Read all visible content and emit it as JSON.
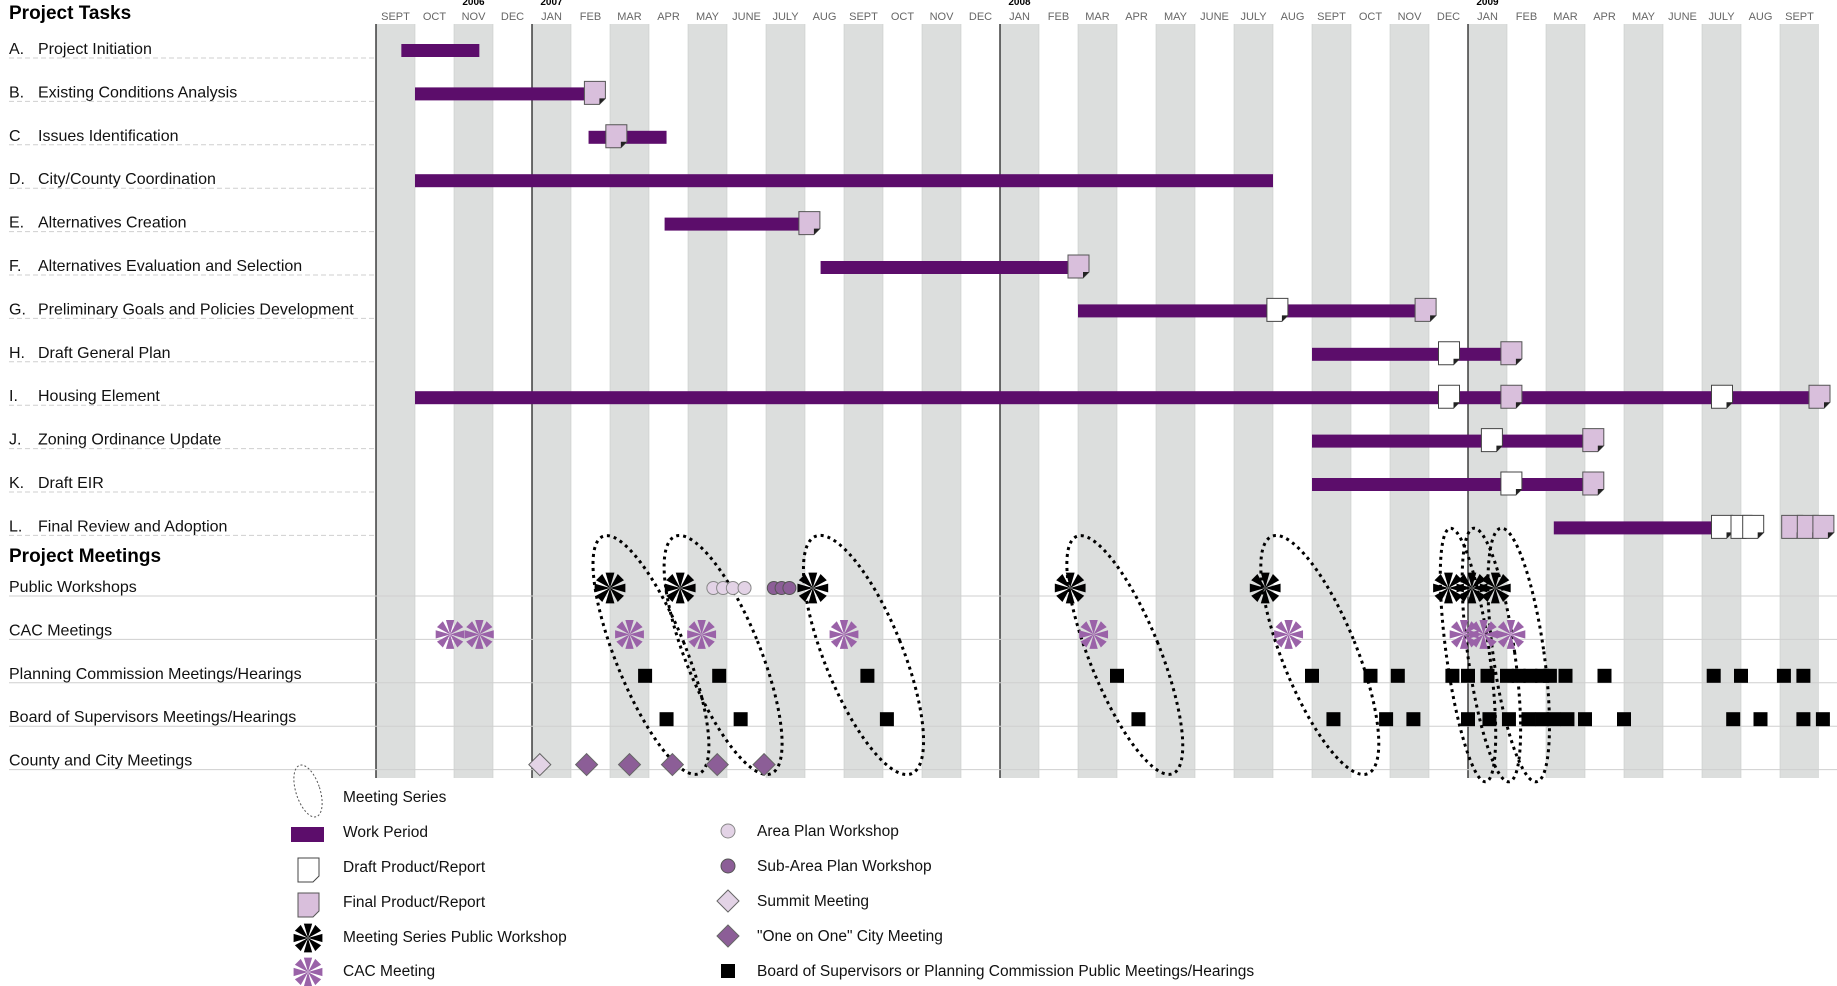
{
  "chart_data": {
    "type": "gantt",
    "headings": {
      "tasks": "Project Tasks",
      "meetings": "Project Meetings"
    },
    "month_labels": [
      "SEPT",
      "OCT",
      "NOV",
      "DEC",
      "JAN",
      "FEB",
      "MAR",
      "APR",
      "MAY",
      "JUNE",
      "JULY",
      "AUG",
      "SEPT",
      "OCT",
      "NOV",
      "DEC",
      "JAN",
      "FEB",
      "MAR",
      "APR",
      "MAY",
      "JUNE",
      "JULY",
      "AUG",
      "SEPT",
      "OCT",
      "NOV",
      "DEC",
      "JAN",
      "FEB",
      "MAR",
      "APR",
      "MAY",
      "JUNE",
      "JULY",
      "AUG",
      "SEPT"
    ],
    "year_labels": [
      {
        "label": "2006",
        "month": 2
      },
      {
        "label": "2007",
        "month": 4
      },
      {
        "label": "2008",
        "month": 16
      },
      {
        "label": "2009",
        "month": 28
      }
    ],
    "tasks": [
      {
        "id": "A.",
        "name": "Project Initiation",
        "start": 0.65,
        "end": 2.65,
        "drafts": [],
        "finals": []
      },
      {
        "id": "B.",
        "name": "Existing Conditions Analysis",
        "start": 1.0,
        "end": 5.6,
        "drafts": [],
        "finals": [
          5.6
        ]
      },
      {
        "id": "C",
        "name": "Issues Identification",
        "start": 5.45,
        "end": 7.45,
        "drafts": [],
        "finals": [
          6.15
        ]
      },
      {
        "id": "D.",
        "name": "City/County Coordination",
        "start": 1.0,
        "end": 23.0,
        "drafts": [],
        "finals": []
      },
      {
        "id": "E.",
        "name": "Alternatives Creation",
        "start": 7.4,
        "end": 11.1,
        "drafts": [],
        "finals": [
          11.1
        ]
      },
      {
        "id": "F.",
        "name": "Alternatives Evaluation and Selection",
        "start": 11.4,
        "end": 18.0,
        "drafts": [],
        "finals": [
          18.0
        ]
      },
      {
        "id": "G.",
        "name": "Preliminary Goals and Policies Development",
        "start": 18.0,
        "end": 26.9,
        "drafts": [
          23.1
        ],
        "finals": [
          26.9
        ]
      },
      {
        "id": "H.",
        "name": "Draft General Plan",
        "start": 24.0,
        "end": 29.0,
        "drafts": [
          27.5
        ],
        "finals": [
          29.1
        ]
      },
      {
        "id": "I.",
        "name": "Housing Element",
        "start": 1.0,
        "end": 37.0,
        "drafts": [
          27.5,
          34.5
        ],
        "finals": [
          29.1,
          37.0
        ]
      },
      {
        "id": "J.",
        "name": "Zoning Ordinance Update",
        "start": 24.0,
        "end": 31.2,
        "drafts": [
          28.6
        ],
        "finals": [
          31.2
        ]
      },
      {
        "id": "K.",
        "name": "Draft EIR",
        "start": 24.0,
        "end": 31.2,
        "drafts": [
          29.1
        ],
        "finals": [
          31.2
        ]
      },
      {
        "id": "L.",
        "name": "Final Review and Adoption",
        "start": 30.2,
        "end": 34.5,
        "drafts": [
          34.5,
          35.0,
          35.3
        ],
        "finals": [
          36.3,
          36.7,
          37.1
        ]
      }
    ],
    "meeting_rows": [
      {
        "name": "Public Workshops",
        "series_workshops": [
          6.0,
          7.8,
          11.2,
          17.8,
          22.8,
          27.5,
          28.1,
          28.7
        ],
        "area_plan_workshops": [
          8.65,
          8.9,
          9.15,
          9.45
        ],
        "sub_area_plan_workshops": [
          10.2,
          10.4,
          10.6
        ]
      },
      {
        "name": "CAC Meetings",
        "cac_meetings": [
          1.9,
          2.65,
          6.5,
          8.35,
          12.0,
          18.4,
          23.4,
          27.9,
          28.4,
          29.1
        ]
      },
      {
        "name": "Planning Commission Meetings/Hearings",
        "hearings": [
          6.9,
          8.8,
          12.6,
          19.0,
          24.0,
          25.5,
          26.2,
          27.6,
          28.0,
          28.5,
          29.0,
          29.3,
          29.6,
          29.9,
          30.1,
          30.5,
          31.5,
          34.3,
          35.0,
          36.1,
          36.6
        ]
      },
      {
        "name": "Board of Supervisors Meetings/Hearings",
        "hearings": [
          7.45,
          9.35,
          13.1,
          19.55,
          24.55,
          25.9,
          26.6,
          28.0,
          28.55,
          29.05,
          29.55,
          29.9,
          30.2,
          30.55,
          31.0,
          32.0,
          34.8,
          35.5,
          36.6,
          37.1
        ]
      },
      {
        "name": "County and City Meetings",
        "summit_meetings": [
          4.2
        ],
        "one_on_one_meetings": [
          5.4,
          6.5,
          7.6,
          8.75,
          9.95
        ]
      }
    ],
    "meeting_series": [
      {
        "cx": 7.05,
        "width": 1.8,
        "angle": -22
      },
      {
        "cx": 8.9,
        "width": 1.9,
        "angle": -22
      },
      {
        "cx": 12.5,
        "width": 2.0,
        "angle": -22
      },
      {
        "cx": 19.2,
        "width": 1.8,
        "angle": -22
      },
      {
        "cx": 24.2,
        "width": 1.9,
        "angle": -22
      },
      {
        "cx": 28.0,
        "width": 1.1,
        "angle": -8
      },
      {
        "cx": 28.6,
        "width": 1.2,
        "angle": -8
      },
      {
        "cx": 29.3,
        "width": 1.3,
        "angle": -8
      }
    ],
    "legend": [
      {
        "key": "meeting-series",
        "label": "Meeting Series",
        "column": 1
      },
      {
        "key": "work-period",
        "label": "Work Period",
        "column": 1
      },
      {
        "key": "draft",
        "label": "Draft Product/Report",
        "column": 1
      },
      {
        "key": "final",
        "label": "Final Product/Report",
        "column": 1
      },
      {
        "key": "series-workshop",
        "label": "Meeting Series Public Workshop",
        "column": 1
      },
      {
        "key": "cac",
        "label": "CAC Meeting",
        "column": 1
      },
      {
        "key": "area-plan",
        "label": "Area Plan Workshop",
        "column": 2
      },
      {
        "key": "sub-area-plan",
        "label": "Sub-Area Plan Workshop",
        "column": 2
      },
      {
        "key": "summit",
        "label": "Summit Meeting",
        "column": 2
      },
      {
        "key": "one-on-one",
        "label": "\"One on One\" City Meeting",
        "column": 2
      },
      {
        "key": "hearing",
        "label": "Board of Supervisors or Planning Commission Public Meetings/Hearings",
        "column": 2
      }
    ],
    "colors": {
      "bar": "#5c0d6b",
      "final": "#d9bfdc",
      "cac": "#9a62a8",
      "area_plan": "#e3d3e6",
      "sub_area_plan": "#8c5e97",
      "summit": "#e3d3e6",
      "one_on_one": "#8c5e97",
      "shade": "#dcdedd"
    }
  }
}
